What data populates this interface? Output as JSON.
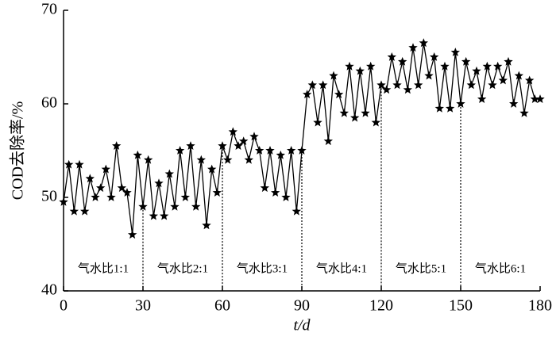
{
  "chart_data": {
    "type": "line",
    "x_label": "t/d",
    "y_label": "COD去除率/%",
    "x": [
      0,
      2,
      4,
      6,
      8,
      10,
      12,
      14,
      16,
      18,
      20,
      22,
      24,
      26,
      28,
      30,
      32,
      34,
      36,
      38,
      40,
      42,
      44,
      46,
      48,
      50,
      52,
      54,
      56,
      58,
      60,
      62,
      64,
      66,
      68,
      70,
      72,
      74,
      76,
      78,
      80,
      82,
      84,
      86,
      88,
      90,
      92,
      94,
      96,
      98,
      100,
      102,
      104,
      106,
      108,
      110,
      112,
      114,
      116,
      118,
      120,
      122,
      124,
      126,
      128,
      130,
      132,
      134,
      136,
      138,
      140,
      142,
      144,
      146,
      148,
      150,
      152,
      154,
      156,
      158,
      160,
      162,
      164,
      166,
      168,
      170,
      172,
      174,
      176,
      178,
      180
    ],
    "series": [
      {
        "name": "COD去除率",
        "color": "#000000",
        "values": [
          49.5,
          53.5,
          48.5,
          53.5,
          48.5,
          52,
          50,
          51,
          53,
          50,
          55.5,
          51,
          50.5,
          46,
          54.5,
          49,
          54,
          48,
          51.5,
          48,
          52.5,
          49,
          55,
          50,
          55.5,
          49,
          54,
          47,
          53,
          50.5,
          55.5,
          54,
          57,
          55.5,
          56,
          54,
          56.5,
          55,
          51,
          55,
          50.5,
          54.5,
          50,
          55,
          48.5,
          55,
          61,
          62,
          58,
          62,
          56,
          63,
          61,
          59,
          64,
          58.5,
          63.5,
          59,
          64,
          58,
          62,
          61.5,
          65,
          62,
          64.5,
          61.5,
          66,
          62,
          66.5,
          63,
          65,
          59.5,
          64,
          59.5,
          65.5,
          60,
          64.5,
          62,
          63.5,
          60.5,
          64,
          62,
          64,
          62.5,
          64.5,
          60,
          63,
          59,
          62.5,
          60.5,
          60.5
        ]
      }
    ],
    "xlim": [
      0,
      180
    ],
    "xticks": [
      0,
      30,
      60,
      90,
      120,
      150,
      180
    ],
    "ylim": [
      40,
      70
    ],
    "yticks": [
      40,
      50,
      60,
      70
    ],
    "dividers": [
      30,
      60,
      90,
      120,
      150
    ],
    "annotations": [
      "气水比1:1",
      "气水比2:1",
      "气水比3:1",
      "气水比4:1",
      "气水比5:1",
      "气水比6:1"
    ],
    "grid": false
  }
}
